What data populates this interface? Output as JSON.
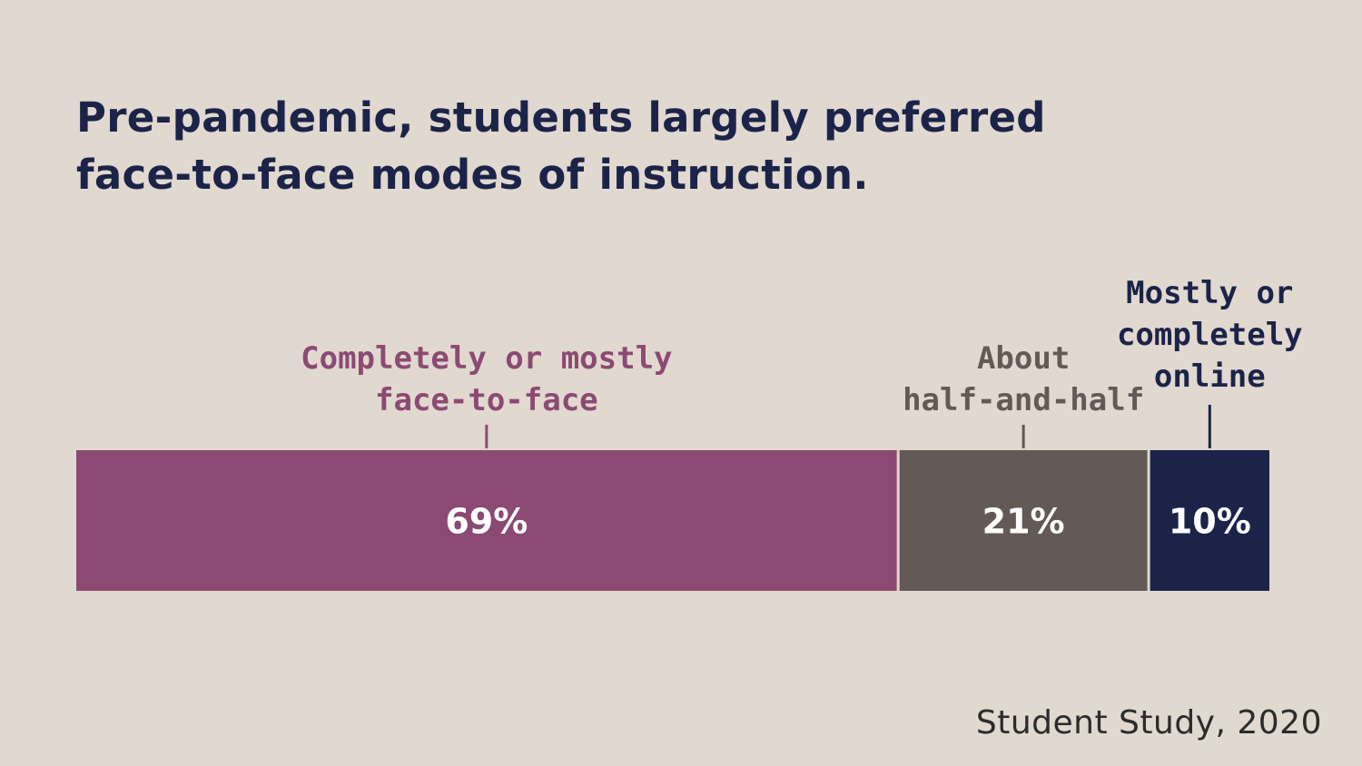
{
  "title_lines": [
    "Pre-pandemic, students largely preferred",
    "face-to-face modes of instruction."
  ],
  "source": "Student Study, 2020",
  "colors": {
    "background": "#e1d8cf",
    "title": "#1b2349",
    "face_to_face": "#8b4a73",
    "half_and_half": "#635956",
    "online": "#1b2349",
    "value_label": "#ffffff"
  },
  "chart_data": {
    "type": "bar",
    "orientation": "horizontal-stacked",
    "unit": "%",
    "xlim": [
      0,
      100
    ],
    "grid": false,
    "legend": "none",
    "series": [
      {
        "label_lines": [
          "Completely or mostly",
          "face-to-face"
        ],
        "value": 69,
        "value_label": "69%",
        "color": "#8b4a73",
        "label_color": "#8b4a73"
      },
      {
        "label_lines": [
          "About",
          "half-and-half"
        ],
        "value": 21,
        "value_label": "21%",
        "color": "#635956",
        "label_color": "#635956"
      },
      {
        "label_lines": [
          "Mostly or",
          "completely",
          "online"
        ],
        "value": 10,
        "value_label": "10%",
        "color": "#1b2349",
        "label_color": "#1b2349"
      }
    ]
  }
}
